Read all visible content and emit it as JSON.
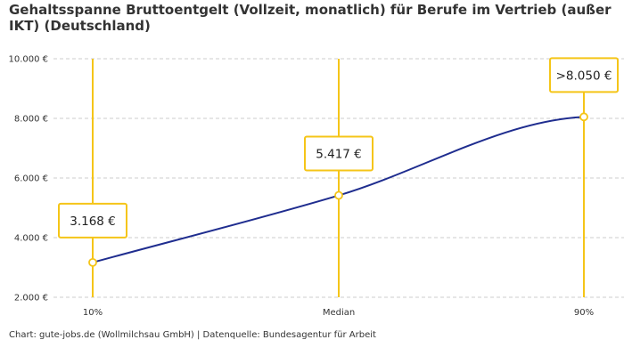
{
  "title": "Gehaltsspanne Bruttoentgelt (Vollzeit, monatlich) für Berufe im Vertrieb (außer IKT) (Deutschland)",
  "footer": "Chart: gute-jobs.de (Wollmilchsau GmbH) | Datenquelle: Bundesagentur für Arbeit",
  "colors": {
    "line": "#1f2d8f",
    "accent": "#f5c518",
    "grid": "#cccccc"
  },
  "chart_data": {
    "type": "line",
    "title": "Gehaltsspanne Bruttoentgelt (Vollzeit, monatlich) für Berufe im Vertrieb (außer IKT) (Deutschland)",
    "categories": [
      "10%",
      "Median",
      "90%"
    ],
    "values": [
      3168,
      5417,
      8050
    ],
    "data_labels": [
      "3.168 €",
      "5.417 €",
      ">8.050 €"
    ],
    "ylim": [
      2000,
      10000
    ],
    "yticks": [
      2000,
      4000,
      6000,
      8000,
      10000
    ],
    "ytick_labels": [
      "2.000 €",
      "4.000 €",
      "6.000 €",
      "8.000 €",
      "10.000 €"
    ],
    "xlabel": "",
    "ylabel": "",
    "grid": true
  }
}
